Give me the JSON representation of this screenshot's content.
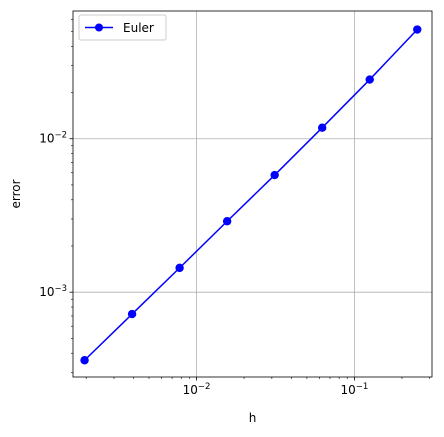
{
  "chart_data": {
    "type": "line",
    "xlabel": "h",
    "ylabel": "error",
    "xscale": "log",
    "yscale": "log",
    "xlim": [
      0.00165,
      0.31
    ],
    "ylim": [
      0.00028,
      0.068
    ],
    "grid": true,
    "legend_position": "top-left",
    "series": [
      {
        "name": "Euler",
        "color": "#0000ff",
        "marker": "circle",
        "x": [
          0.001953125,
          0.00390625,
          0.0078125,
          0.015625,
          0.03125,
          0.0625,
          0.125,
          0.25
        ],
        "y": [
          0.00036,
          0.00072,
          0.00144,
          0.0029,
          0.0058,
          0.0118,
          0.0243,
          0.0515
        ]
      }
    ],
    "x_ticks": [
      {
        "value": 0.01,
        "mantissa": "10",
        "exponent": "−2"
      },
      {
        "value": 0.1,
        "mantissa": "10",
        "exponent": "−1"
      }
    ],
    "y_ticks": [
      {
        "value": 0.001,
        "mantissa": "10",
        "exponent": "−3"
      },
      {
        "value": 0.01,
        "mantissa": "10",
        "exponent": "−2"
      }
    ]
  }
}
